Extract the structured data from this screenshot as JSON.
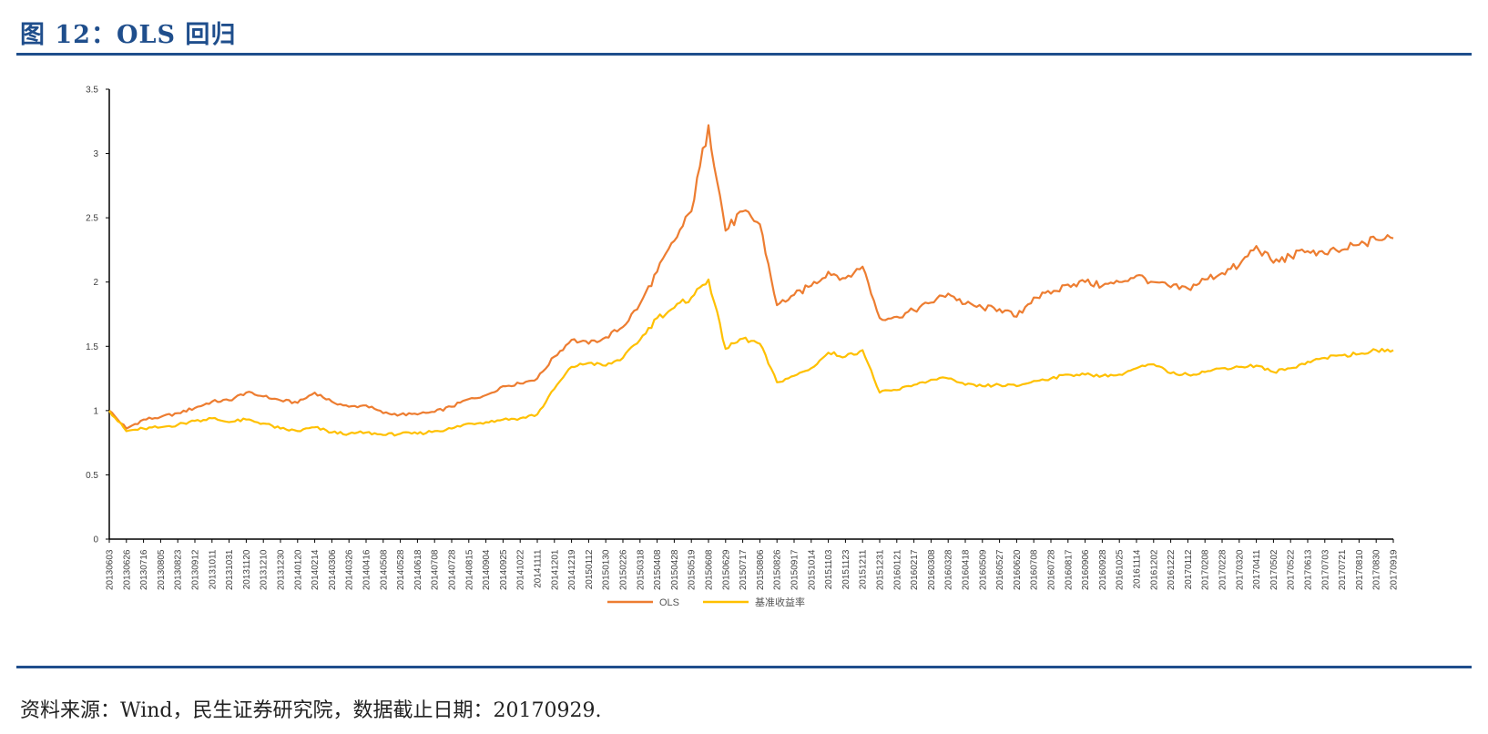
{
  "header": {
    "title": "图 12：OLS 回归"
  },
  "footer": {
    "source": "资料来源：Wind，民生证券研究院，数据截止日期：20170929."
  },
  "colors": {
    "ols": "#ED7D31",
    "benchmark": "#FFC000",
    "rule": "#1F4E8C"
  },
  "chart_data": {
    "type": "line",
    "title": "",
    "xlabel": "",
    "ylabel": "",
    "ylim": [
      0,
      3.5
    ],
    "yticks": [
      0,
      0.5,
      1,
      1.5,
      2,
      2.5,
      3,
      3.5
    ],
    "ytick_labels": [
      "0",
      "0.5",
      "1",
      "1.5",
      "2",
      "2.5",
      "3",
      "3.5"
    ],
    "grid": false,
    "legend_position": "bottom",
    "x_tick_labels": [
      "20130603",
      "20130626",
      "20130716",
      "20130805",
      "20130823",
      "20130912",
      "20131011",
      "20131031",
      "20131120",
      "20131210",
      "20131230",
      "20140120",
      "20140214",
      "20140306",
      "20140326",
      "20140416",
      "20140508",
      "20140528",
      "20140618",
      "20140708",
      "20140728",
      "20140815",
      "20140904",
      "20140925",
      "20141022",
      "20141111",
      "20141201",
      "20141219",
      "20150112",
      "20150130",
      "20150226",
      "20150318",
      "20150408",
      "20150428",
      "20150519",
      "20150608",
      "20150629",
      "20150717",
      "20150806",
      "20150826",
      "20150917",
      "20151014",
      "20151103",
      "20151123",
      "20151211",
      "20151231",
      "20160121",
      "20160217",
      "20160308",
      "20160328",
      "20160418",
      "20160509",
      "20160527",
      "20160620",
      "20160708",
      "20160728",
      "20160817",
      "20160906",
      "20160928",
      "20161025",
      "20161114",
      "20161202",
      "20161222",
      "20170112",
      "20170208",
      "20170228",
      "20170320",
      "20170411",
      "20170502",
      "20170522",
      "20170613",
      "20170703",
      "20170721",
      "20170810",
      "20170830",
      "20170919"
    ],
    "series": [
      {
        "name": "OLS",
        "color": "#ED7D31",
        "values": [
          1.0,
          0.86,
          0.93,
          0.95,
          0.98,
          1.02,
          1.07,
          1.08,
          1.14,
          1.11,
          1.08,
          1.06,
          1.14,
          1.07,
          1.03,
          1.04,
          0.98,
          0.97,
          0.97,
          0.99,
          1.03,
          1.09,
          1.12,
          1.19,
          1.21,
          1.25,
          1.42,
          1.55,
          1.52,
          1.57,
          1.65,
          1.83,
          2.08,
          2.32,
          2.55,
          3.22,
          2.4,
          2.55,
          2.45,
          1.82,
          1.9,
          1.97,
          2.08,
          2.03,
          2.12,
          1.72,
          1.73,
          1.78,
          1.84,
          1.91,
          1.83,
          1.8,
          1.79,
          1.73,
          1.88,
          1.91,
          1.98,
          2.0,
          1.97,
          2.0,
          2.05,
          2.0,
          1.96,
          1.95,
          2.02,
          2.07,
          2.13,
          2.28,
          2.15,
          2.2,
          2.24,
          2.22,
          2.25,
          2.29,
          2.33,
          2.34
        ]
      },
      {
        "name": "基准收益率",
        "color": "#FFC000",
        "values": [
          1.0,
          0.84,
          0.86,
          0.87,
          0.89,
          0.92,
          0.94,
          0.91,
          0.93,
          0.9,
          0.86,
          0.84,
          0.87,
          0.83,
          0.82,
          0.83,
          0.81,
          0.82,
          0.82,
          0.84,
          0.86,
          0.9,
          0.91,
          0.93,
          0.94,
          0.97,
          1.17,
          1.34,
          1.37,
          1.35,
          1.41,
          1.55,
          1.72,
          1.8,
          1.88,
          2.02,
          1.48,
          1.56,
          1.52,
          1.22,
          1.27,
          1.33,
          1.45,
          1.42,
          1.47,
          1.14,
          1.16,
          1.2,
          1.24,
          1.25,
          1.2,
          1.19,
          1.2,
          1.19,
          1.23,
          1.25,
          1.28,
          1.28,
          1.27,
          1.28,
          1.33,
          1.36,
          1.29,
          1.28,
          1.3,
          1.33,
          1.34,
          1.35,
          1.3,
          1.33,
          1.38,
          1.41,
          1.43,
          1.44,
          1.47,
          1.47
        ]
      }
    ]
  }
}
